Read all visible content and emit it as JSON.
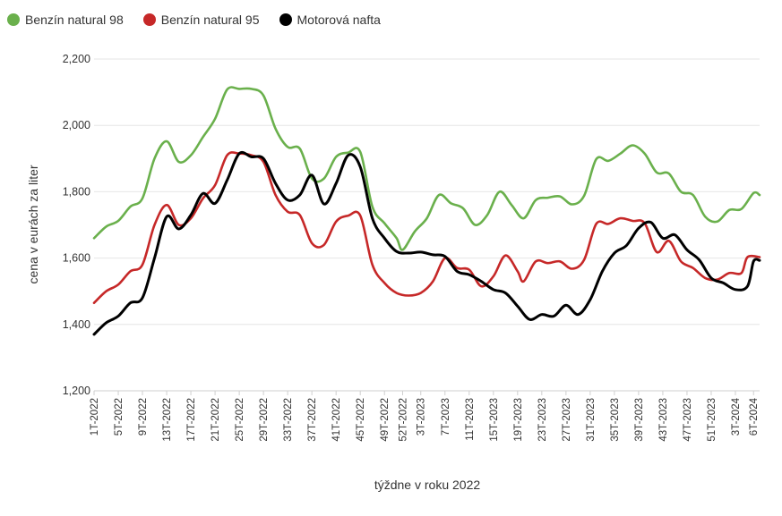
{
  "legend": [
    {
      "name": "Benzín natural 98",
      "color": "#6ab04c"
    },
    {
      "name": "Benzín natural 95",
      "color": "#c62828"
    },
    {
      "name": "Motorová nafta",
      "color": "#000000"
    }
  ],
  "chart_data": {
    "type": "line",
    "xlabel": "týždne v roku 2022",
    "ylabel": "cena v eurách za liter",
    "ylim": [
      1.2,
      2.2
    ],
    "yticks": [
      1.2,
      1.4,
      1.6,
      1.8,
      2.0,
      2.2
    ],
    "ytick_labels": [
      "1,200",
      "1,400",
      "1,600",
      "1,800",
      "2,000",
      "2,200"
    ],
    "grid": true,
    "legend_position": "top-left",
    "x_tick_labels": [
      "1T-2022",
      "5T-2022",
      "9T-2022",
      "13T-2022",
      "17T-2022",
      "21T-2022",
      "25T-2022",
      "29T-2022",
      "33T-2022",
      "37T-2022",
      "41T-2022",
      "45T-2022",
      "49T-2022",
      "52T-2022",
      "3T-2023",
      "7T-2023",
      "11T-2023",
      "15T-2023",
      "19T-2023",
      "23T-2023",
      "27T-2023",
      "31T-2023",
      "35T-2023",
      "39T-2023",
      "43T-2023",
      "47T-2023",
      "51T-2023",
      "3T-2024",
      "6T-2024"
    ],
    "x_tick_weeks": [
      0,
      4,
      8,
      12,
      16,
      20,
      24,
      28,
      32,
      36,
      40,
      44,
      48,
      51,
      54,
      58,
      62,
      66,
      70,
      74,
      78,
      82,
      86,
      90,
      94,
      98,
      102,
      106,
      109
    ],
    "n_weeks": 111,
    "series": [
      {
        "name": "Benzín natural 98",
        "color": "#6ab04c",
        "points": [
          [
            0,
            1.66
          ],
          [
            2,
            1.695
          ],
          [
            4,
            1.712
          ],
          [
            6,
            1.755
          ],
          [
            8,
            1.78
          ],
          [
            10,
            1.9
          ],
          [
            12,
            1.952
          ],
          [
            14,
            1.89
          ],
          [
            16,
            1.91
          ],
          [
            18,
            1.965
          ],
          [
            20,
            2.02
          ],
          [
            22,
            2.108
          ],
          [
            24,
            2.11
          ],
          [
            26,
            2.11
          ],
          [
            28,
            2.09
          ],
          [
            30,
            1.99
          ],
          [
            32,
            1.935
          ],
          [
            34,
            1.93
          ],
          [
            36,
            1.84
          ],
          [
            38,
            1.84
          ],
          [
            40,
            1.905
          ],
          [
            42,
            1.918
          ],
          [
            44,
            1.92
          ],
          [
            46,
            1.755
          ],
          [
            48,
            1.705
          ],
          [
            50,
            1.66
          ],
          [
            51,
            1.625
          ],
          [
            53,
            1.68
          ],
          [
            55,
            1.72
          ],
          [
            57,
            1.79
          ],
          [
            59,
            1.765
          ],
          [
            61,
            1.75
          ],
          [
            63,
            1.7
          ],
          [
            65,
            1.73
          ],
          [
            67,
            1.8
          ],
          [
            69,
            1.76
          ],
          [
            71,
            1.72
          ],
          [
            73,
            1.775
          ],
          [
            75,
            1.782
          ],
          [
            77,
            1.786
          ],
          [
            79,
            1.762
          ],
          [
            81,
            1.788
          ],
          [
            83,
            1.898
          ],
          [
            85,
            1.893
          ],
          [
            87,
            1.915
          ],
          [
            89,
            1.94
          ],
          [
            91,
            1.915
          ],
          [
            93,
            1.858
          ],
          [
            95,
            1.855
          ],
          [
            97,
            1.8
          ],
          [
            99,
            1.79
          ],
          [
            101,
            1.725
          ],
          [
            103,
            1.71
          ],
          [
            105,
            1.745
          ],
          [
            107,
            1.748
          ],
          [
            109,
            1.796
          ],
          [
            110,
            1.79
          ]
        ]
      },
      {
        "name": "Benzín natural 95",
        "color": "#c62828",
        "points": [
          [
            0,
            1.465
          ],
          [
            2,
            1.5
          ],
          [
            4,
            1.52
          ],
          [
            6,
            1.56
          ],
          [
            8,
            1.58
          ],
          [
            10,
            1.7
          ],
          [
            12,
            1.76
          ],
          [
            14,
            1.7
          ],
          [
            16,
            1.72
          ],
          [
            18,
            1.78
          ],
          [
            20,
            1.82
          ],
          [
            22,
            1.91
          ],
          [
            24,
            1.915
          ],
          [
            26,
            1.91
          ],
          [
            28,
            1.89
          ],
          [
            30,
            1.79
          ],
          [
            32,
            1.74
          ],
          [
            34,
            1.73
          ],
          [
            36,
            1.645
          ],
          [
            38,
            1.64
          ],
          [
            40,
            1.71
          ],
          [
            42,
            1.728
          ],
          [
            44,
            1.728
          ],
          [
            46,
            1.58
          ],
          [
            48,
            1.525
          ],
          [
            50,
            1.495
          ],
          [
            52,
            1.487
          ],
          [
            54,
            1.495
          ],
          [
            56,
            1.53
          ],
          [
            58,
            1.6
          ],
          [
            60,
            1.57
          ],
          [
            62,
            1.565
          ],
          [
            64,
            1.515
          ],
          [
            66,
            1.545
          ],
          [
            68,
            1.608
          ],
          [
            70,
            1.56
          ],
          [
            71,
            1.53
          ],
          [
            73,
            1.59
          ],
          [
            75,
            1.585
          ],
          [
            77,
            1.59
          ],
          [
            79,
            1.568
          ],
          [
            81,
            1.595
          ],
          [
            83,
            1.703
          ],
          [
            85,
            1.703
          ],
          [
            87,
            1.72
          ],
          [
            89,
            1.712
          ],
          [
            91,
            1.705
          ],
          [
            93,
            1.618
          ],
          [
            95,
            1.652
          ],
          [
            97,
            1.59
          ],
          [
            99,
            1.57
          ],
          [
            101,
            1.54
          ],
          [
            103,
            1.535
          ],
          [
            105,
            1.555
          ],
          [
            107,
            1.555
          ],
          [
            108,
            1.603
          ],
          [
            110,
            1.603
          ]
        ]
      },
      {
        "name": "Motorová nafta",
        "color": "#000000",
        "points": [
          [
            0,
            1.37
          ],
          [
            2,
            1.405
          ],
          [
            4,
            1.425
          ],
          [
            6,
            1.465
          ],
          [
            8,
            1.48
          ],
          [
            10,
            1.6
          ],
          [
            12,
            1.725
          ],
          [
            14,
            1.688
          ],
          [
            16,
            1.73
          ],
          [
            18,
            1.795
          ],
          [
            20,
            1.765
          ],
          [
            22,
            1.835
          ],
          [
            24,
            1.915
          ],
          [
            26,
            1.905
          ],
          [
            28,
            1.9
          ],
          [
            30,
            1.825
          ],
          [
            32,
            1.775
          ],
          [
            34,
            1.79
          ],
          [
            36,
            1.85
          ],
          [
            38,
            1.763
          ],
          [
            40,
            1.825
          ],
          [
            42,
            1.91
          ],
          [
            44,
            1.875
          ],
          [
            46,
            1.72
          ],
          [
            48,
            1.66
          ],
          [
            50,
            1.62
          ],
          [
            52,
            1.615
          ],
          [
            54,
            1.618
          ],
          [
            56,
            1.61
          ],
          [
            58,
            1.605
          ],
          [
            60,
            1.56
          ],
          [
            62,
            1.55
          ],
          [
            64,
            1.53
          ],
          [
            66,
            1.505
          ],
          [
            68,
            1.495
          ],
          [
            70,
            1.455
          ],
          [
            72,
            1.415
          ],
          [
            74,
            1.43
          ],
          [
            76,
            1.425
          ],
          [
            78,
            1.458
          ],
          [
            80,
            1.43
          ],
          [
            82,
            1.475
          ],
          [
            84,
            1.56
          ],
          [
            86,
            1.615
          ],
          [
            88,
            1.638
          ],
          [
            90,
            1.69
          ],
          [
            92,
            1.708
          ],
          [
            94,
            1.66
          ],
          [
            96,
            1.67
          ],
          [
            98,
            1.625
          ],
          [
            100,
            1.595
          ],
          [
            102,
            1.54
          ],
          [
            104,
            1.525
          ],
          [
            106,
            1.505
          ],
          [
            108,
            1.515
          ],
          [
            109,
            1.59
          ],
          [
            110,
            1.593
          ]
        ]
      }
    ]
  }
}
